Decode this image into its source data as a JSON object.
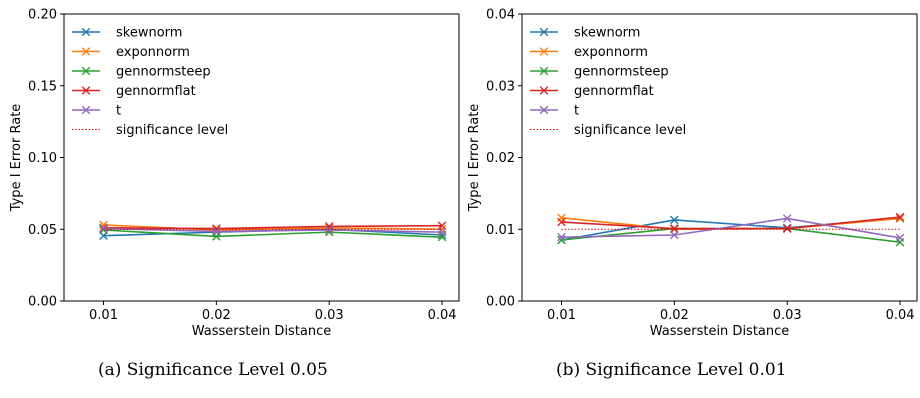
{
  "chart_data": [
    {
      "type": "line",
      "xlabel": "Wasserstein Distance",
      "ylabel": "Type I Error Rate",
      "x": [
        0.01,
        0.02,
        0.03,
        0.04
      ],
      "x_tick_labels": [
        "0.01",
        "0.02",
        "0.03",
        "0.04"
      ],
      "xlim": [
        0.0065,
        0.0415
      ],
      "ylim": [
        0.0,
        0.2
      ],
      "y_tick_labels": [
        "0.00",
        "0.05",
        "0.10",
        "0.15",
        "0.20"
      ],
      "y_ticks": [
        0.0,
        0.05,
        0.1,
        0.15,
        0.2
      ],
      "grid": false,
      "legend_position": "upper-left",
      "series": [
        {
          "name": "skewnorm",
          "color": "#1f77b4",
          "marker": "x",
          "values": [
            0.0455,
            0.048,
            0.05,
            0.046
          ]
        },
        {
          "name": "exponnorm",
          "color": "#ff7f0e",
          "marker": "x",
          "values": [
            0.053,
            0.0495,
            0.051,
            0.05
          ]
        },
        {
          "name": "gennormsteep",
          "color": "#2ca02c",
          "marker": "x",
          "values": [
            0.0495,
            0.045,
            0.048,
            0.0445
          ]
        },
        {
          "name": "gennormflat",
          "color": "#d62728",
          "marker": "x",
          "values": [
            0.051,
            0.0505,
            0.052,
            0.0525
          ]
        },
        {
          "name": "t",
          "color": "#9467bd",
          "marker": "x",
          "values": [
            0.0505,
            0.0485,
            0.0495,
            0.048
          ]
        },
        {
          "name": "significance level",
          "color": "#cc0000",
          "style": "dotted",
          "values": [
            0.05,
            0.05,
            0.05,
            0.05
          ]
        }
      ],
      "caption": "(a) Significance Level 0.05"
    },
    {
      "type": "line",
      "xlabel": "Wasserstein Distance",
      "ylabel": "Type I Error Rate",
      "x": [
        0.01,
        0.02,
        0.03,
        0.04
      ],
      "x_tick_labels": [
        "0.01",
        "0.02",
        "0.03",
        "0.04"
      ],
      "xlim": [
        0.0065,
        0.0415
      ],
      "ylim": [
        0.0,
        0.04
      ],
      "y_tick_labels": [
        "0.00",
        "0.01",
        "0.02",
        "0.03",
        "0.04"
      ],
      "y_ticks": [
        0.0,
        0.01,
        0.02,
        0.03,
        0.04
      ],
      "grid": false,
      "legend_position": "upper-left",
      "series": [
        {
          "name": "skewnorm",
          "color": "#1f77b4",
          "marker": "x",
          "values": [
            0.0085,
            0.0113,
            0.0102,
            0.0115
          ]
        },
        {
          "name": "exponnorm",
          "color": "#ff7f0e",
          "marker": "x",
          "values": [
            0.0116,
            0.01,
            0.0101,
            0.0115
          ]
        },
        {
          "name": "gennormsteep",
          "color": "#2ca02c",
          "marker": "x",
          "values": [
            0.0085,
            0.0101,
            0.0101,
            0.0082
          ]
        },
        {
          "name": "gennormflat",
          "color": "#d62728",
          "marker": "x",
          "values": [
            0.011,
            0.0101,
            0.0101,
            0.0117
          ]
        },
        {
          "name": "t",
          "color": "#9467bd",
          "marker": "x",
          "values": [
            0.0089,
            0.0092,
            0.0115,
            0.0088
          ]
        },
        {
          "name": "significance level",
          "color": "#cc0000",
          "style": "dotted",
          "values": [
            0.01,
            0.01,
            0.01,
            0.01
          ]
        }
      ],
      "caption": "(b) Significance Level 0.01"
    }
  ]
}
